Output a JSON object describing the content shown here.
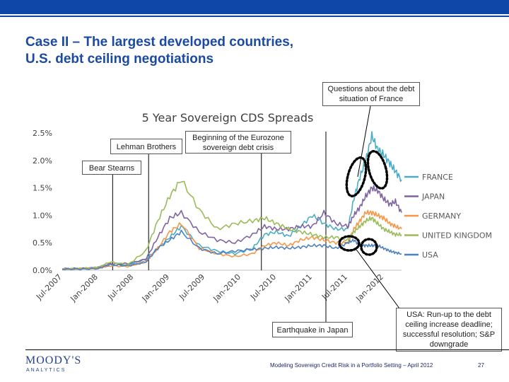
{
  "slide": {
    "title": "Case II – The largest developed countries,\nU.S. debt ceiling negotiations"
  },
  "annotations": {
    "france_debt": "Questions about the debt situation of France",
    "lehman": "Lehman Brothers",
    "eurozone": "Beginning of the Eurozone sovereign debt crisis",
    "bear_stearns": "Bear Stearns",
    "earthquake": "Earthquake in Japan",
    "usa_debt": "USA: Run-up to the debt ceiling increase deadline; successful resolution; S&P downgrade"
  },
  "footer": {
    "logo": "MOODY'S",
    "logo_sub": "ANALYTICS",
    "text": "Modeling Sovereign Credit Risk in a Portfolio Setting – April 2012",
    "page": "27"
  },
  "colors": {
    "accent_bar": "#0f47a8",
    "title": "#1a4aa3"
  },
  "chart_data": {
    "type": "line",
    "title": "5 Year Sovereign CDS Spreads",
    "xlabel": "",
    "ylabel": "",
    "x_range": [
      "2007-07-01",
      "2012-04-01"
    ],
    "ylim": [
      0,
      2.5
    ],
    "y_ticks": [
      "0.0%",
      "0.5%",
      "1.0%",
      "1.5%",
      "2.0%",
      "2.5%"
    ],
    "x_ticks": [
      "Jul-2007",
      "Jan-2008",
      "Jul-2008",
      "Jan-2009",
      "Jul-2009",
      "Jan-2010",
      "Jul-2010",
      "Jan-2011",
      "Jul-2011",
      "Jan-2012"
    ],
    "grid": false,
    "legend_position": "right",
    "event_lines": [
      {
        "name": "Bear Stearns",
        "x": "2008-03-15"
      },
      {
        "name": "Lehman Brothers",
        "x": "2008-09-15"
      },
      {
        "name": "Beginning of the Eurozone sovereign debt crisis",
        "x": "2010-04-15"
      },
      {
        "name": "Earthquake in Japan",
        "x": "2011-03-11"
      }
    ],
    "series": [
      {
        "name": "FRANCE",
        "color": "#4bacc6",
        "x": [
          "2007-07",
          "2007-10",
          "2008-01",
          "2008-03",
          "2008-06",
          "2008-09",
          "2008-11",
          "2009-01",
          "2009-03",
          "2009-06",
          "2009-09",
          "2009-12",
          "2010-03",
          "2010-05",
          "2010-07",
          "2010-09",
          "2010-11",
          "2011-01",
          "2011-03",
          "2011-05",
          "2011-07",
          "2011-08",
          "2011-09",
          "2011-10",
          "2011-11",
          "2011-12",
          "2012-01",
          "2012-02",
          "2012-03",
          "2012-04"
        ],
        "values": [
          0.02,
          0.03,
          0.04,
          0.1,
          0.1,
          0.2,
          0.4,
          0.6,
          0.8,
          0.45,
          0.35,
          0.3,
          0.4,
          0.65,
          0.7,
          0.62,
          0.8,
          1.0,
          0.85,
          0.75,
          0.75,
          1.3,
          1.7,
          2.0,
          2.45,
          2.2,
          2.1,
          1.95,
          1.8,
          1.65
        ]
      },
      {
        "name": "JAPAN",
        "color": "#8064a2",
        "x": [
          "2007-07",
          "2007-10",
          "2008-01",
          "2008-03",
          "2008-06",
          "2008-09",
          "2008-11",
          "2009-01",
          "2009-03",
          "2009-06",
          "2009-09",
          "2009-12",
          "2010-03",
          "2010-05",
          "2010-07",
          "2010-09",
          "2010-11",
          "2011-01",
          "2011-03",
          "2011-05",
          "2011-07",
          "2011-08",
          "2011-09",
          "2011-10",
          "2011-11",
          "2011-12",
          "2012-01",
          "2012-02",
          "2012-03",
          "2012-04"
        ],
        "values": [
          0.03,
          0.03,
          0.05,
          0.12,
          0.12,
          0.2,
          0.6,
          0.95,
          1.05,
          0.7,
          0.55,
          0.5,
          0.65,
          0.8,
          0.75,
          0.75,
          0.8,
          0.8,
          1.05,
          0.85,
          0.8,
          1.0,
          1.15,
          1.35,
          1.5,
          1.45,
          1.3,
          1.2,
          1.25,
          1.05
        ]
      },
      {
        "name": "GERMANY",
        "color": "#f79646",
        "x": [
          "2007-07",
          "2007-10",
          "2008-01",
          "2008-03",
          "2008-06",
          "2008-09",
          "2008-11",
          "2009-01",
          "2009-03",
          "2009-06",
          "2009-09",
          "2009-12",
          "2010-03",
          "2010-05",
          "2010-07",
          "2010-09",
          "2010-11",
          "2011-01",
          "2011-03",
          "2011-05",
          "2011-07",
          "2011-08",
          "2011-09",
          "2011-10",
          "2011-11",
          "2011-12",
          "2012-01",
          "2012-02",
          "2012-03",
          "2012-04"
        ],
        "values": [
          0.02,
          0.03,
          0.04,
          0.08,
          0.07,
          0.15,
          0.4,
          0.7,
          0.85,
          0.4,
          0.3,
          0.25,
          0.3,
          0.45,
          0.5,
          0.45,
          0.55,
          0.6,
          0.55,
          0.5,
          0.5,
          0.75,
          0.9,
          1.05,
          1.05,
          1.0,
          0.95,
          0.85,
          0.8,
          0.75
        ]
      },
      {
        "name": "UNITED KINGDOM",
        "color": "#9bbb59",
        "x": [
          "2007-07",
          "2007-10",
          "2008-01",
          "2008-03",
          "2008-06",
          "2008-09",
          "2008-11",
          "2009-01",
          "2009-03",
          "2009-06",
          "2009-09",
          "2009-12",
          "2010-03",
          "2010-05",
          "2010-07",
          "2010-09",
          "2010-11",
          "2011-01",
          "2011-03",
          "2011-05",
          "2011-07",
          "2011-08",
          "2011-09",
          "2011-10",
          "2011-11",
          "2011-12",
          "2012-01",
          "2012-02",
          "2012-03",
          "2012-04"
        ],
        "values": [
          0.02,
          0.03,
          0.05,
          0.15,
          0.1,
          0.35,
          0.9,
          1.35,
          1.65,
          1.1,
          0.75,
          0.85,
          0.9,
          0.95,
          0.85,
          0.75,
          0.7,
          0.65,
          0.6,
          0.6,
          0.55,
          0.7,
          0.8,
          0.9,
          0.95,
          0.85,
          0.75,
          0.7,
          0.65,
          0.65
        ]
      },
      {
        "name": "USA",
        "color": "#4f81bd",
        "x": [
          "2007-07",
          "2007-10",
          "2008-01",
          "2008-03",
          "2008-06",
          "2008-09",
          "2008-11",
          "2009-01",
          "2009-03",
          "2009-06",
          "2009-09",
          "2009-12",
          "2010-03",
          "2010-05",
          "2010-07",
          "2010-09",
          "2010-11",
          "2011-01",
          "2011-03",
          "2011-05",
          "2011-07",
          "2011-08",
          "2011-09",
          "2011-10",
          "2011-11",
          "2011-12",
          "2012-01",
          "2012-02",
          "2012-03",
          "2012-04"
        ],
        "values": [
          0.02,
          0.02,
          0.03,
          0.1,
          0.08,
          0.15,
          0.4,
          0.55,
          0.7,
          0.4,
          0.3,
          0.35,
          0.38,
          0.4,
          0.42,
          0.4,
          0.42,
          0.45,
          0.45,
          0.4,
          0.5,
          0.55,
          0.45,
          0.45,
          0.45,
          0.45,
          0.4,
          0.35,
          0.32,
          0.3
        ]
      }
    ]
  }
}
